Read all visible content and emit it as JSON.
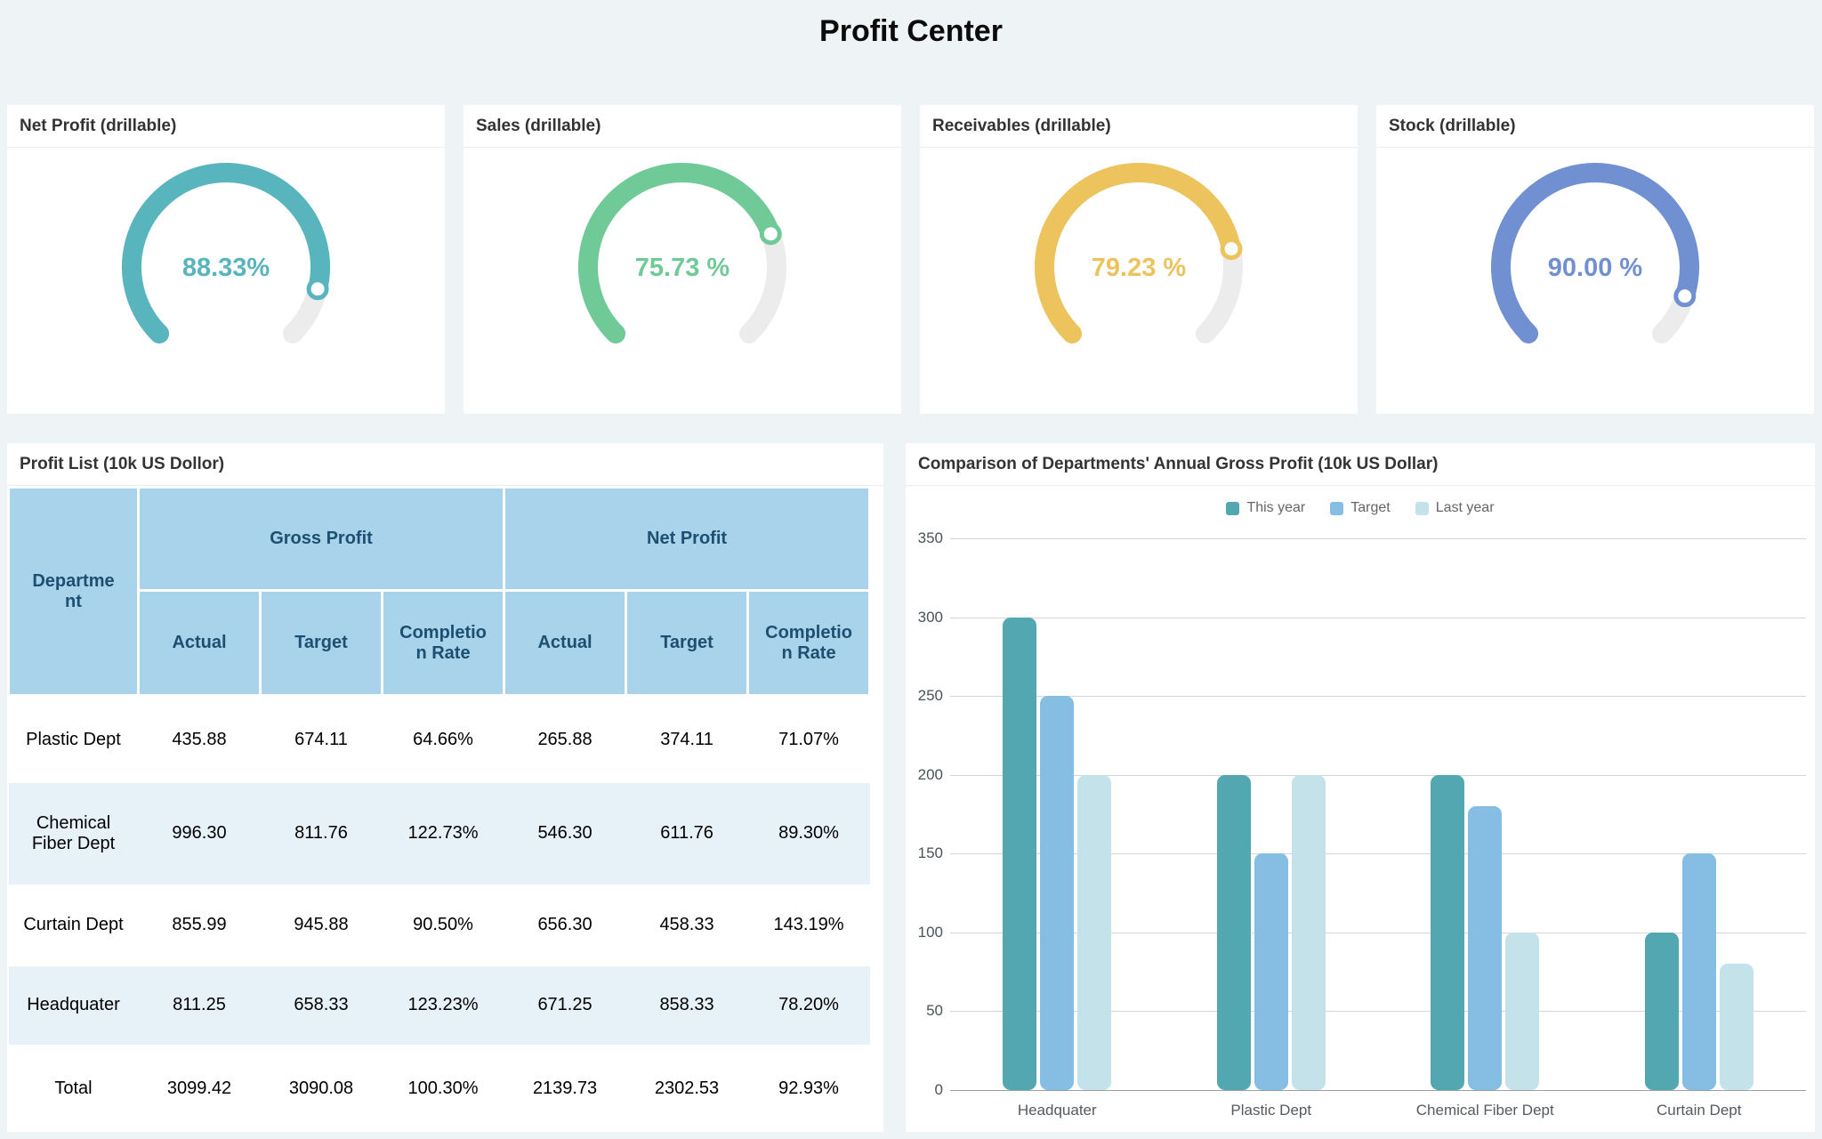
{
  "page_title": "Profit Center",
  "gauges": [
    {
      "title": "Net Profit (drillable)",
      "value_label": "88.33%",
      "percent": 88.33,
      "color": "#58b4bd"
    },
    {
      "title": "Sales (drillable)",
      "value_label": "75.73 %",
      "percent": 75.73,
      "color": "#6fca97"
    },
    {
      "title": "Receivables (drillable)",
      "value_label": "79.23 %",
      "percent": 79.23,
      "color": "#ecc35d"
    },
    {
      "title": "Stock (drillable)",
      "value_label": "90.00 %",
      "percent": 90.0,
      "color": "#7190d2"
    }
  ],
  "gauge_track_color": "#ececec",
  "profit_table": {
    "title": "Profit List (10k US Dollor)",
    "headers": {
      "department": "Department",
      "gross_profit": "Gross Profit",
      "net_profit": "Net Profit",
      "actual": "Actual",
      "target": "Target",
      "completion_rate": "Completion Rate"
    },
    "status_colors": {
      "red": "#e2685c",
      "teal": "#4eb3bd"
    },
    "rows": [
      {
        "department": "Plastic Dept",
        "gross_actual": "435.88",
        "gross_target": "674.11",
        "gross_rate": "64.66%",
        "gross_rate_status": "red",
        "net_actual": "265.88",
        "net_target": "374.11",
        "net_rate": "71.07%",
        "net_rate_status": "red"
      },
      {
        "department": "Chemical Fiber Dept",
        "gross_actual": "996.30",
        "gross_target": "811.76",
        "gross_rate": "122.73%",
        "gross_rate_status": "teal",
        "net_actual": "546.30",
        "net_target": "611.76",
        "net_rate": "89.30%",
        "net_rate_status": "red"
      },
      {
        "department": "Curtain Dept",
        "gross_actual": "855.99",
        "gross_target": "945.88",
        "gross_rate": "90.50%",
        "gross_rate_status": "red",
        "net_actual": "656.30",
        "net_target": "458.33",
        "net_rate": "143.19%",
        "net_rate_status": "teal"
      },
      {
        "department": "Headquater",
        "gross_actual": "811.25",
        "gross_target": "658.33",
        "gross_rate": "123.23%",
        "gross_rate_status": "teal",
        "net_actual": "671.25",
        "net_target": "858.33",
        "net_rate": "78.20%",
        "net_rate_status": "red"
      },
      {
        "department": "Total",
        "gross_actual": "3099.42",
        "gross_target": "3090.08",
        "gross_rate": "100.30%",
        "gross_rate_status": "teal",
        "net_actual": "2139.73",
        "net_target": "2302.53",
        "net_rate": "92.93%",
        "net_rate_status": "red"
      }
    ]
  },
  "chart_data": {
    "type": "bar",
    "title": "Comparison of Departments' Annual Gross Profit (10k US Dollar)",
    "categories": [
      "Headquater",
      "Plastic Dept",
      "Chemical Fiber Dept",
      "Curtain Dept"
    ],
    "series": [
      {
        "name": "This year",
        "color": "#52a7b1",
        "values": [
          300,
          200,
          200,
          100
        ]
      },
      {
        "name": "Target",
        "color": "#85bde3",
        "values": [
          250,
          150,
          180,
          150
        ]
      },
      {
        "name": "Last year",
        "color": "#c4e2e9",
        "values": [
          200,
          200,
          100,
          80
        ]
      }
    ],
    "ylim": [
      0,
      350
    ],
    "ytick_step": 50,
    "ylabel": "",
    "xlabel": "",
    "grid": true,
    "legend_position": "top"
  }
}
